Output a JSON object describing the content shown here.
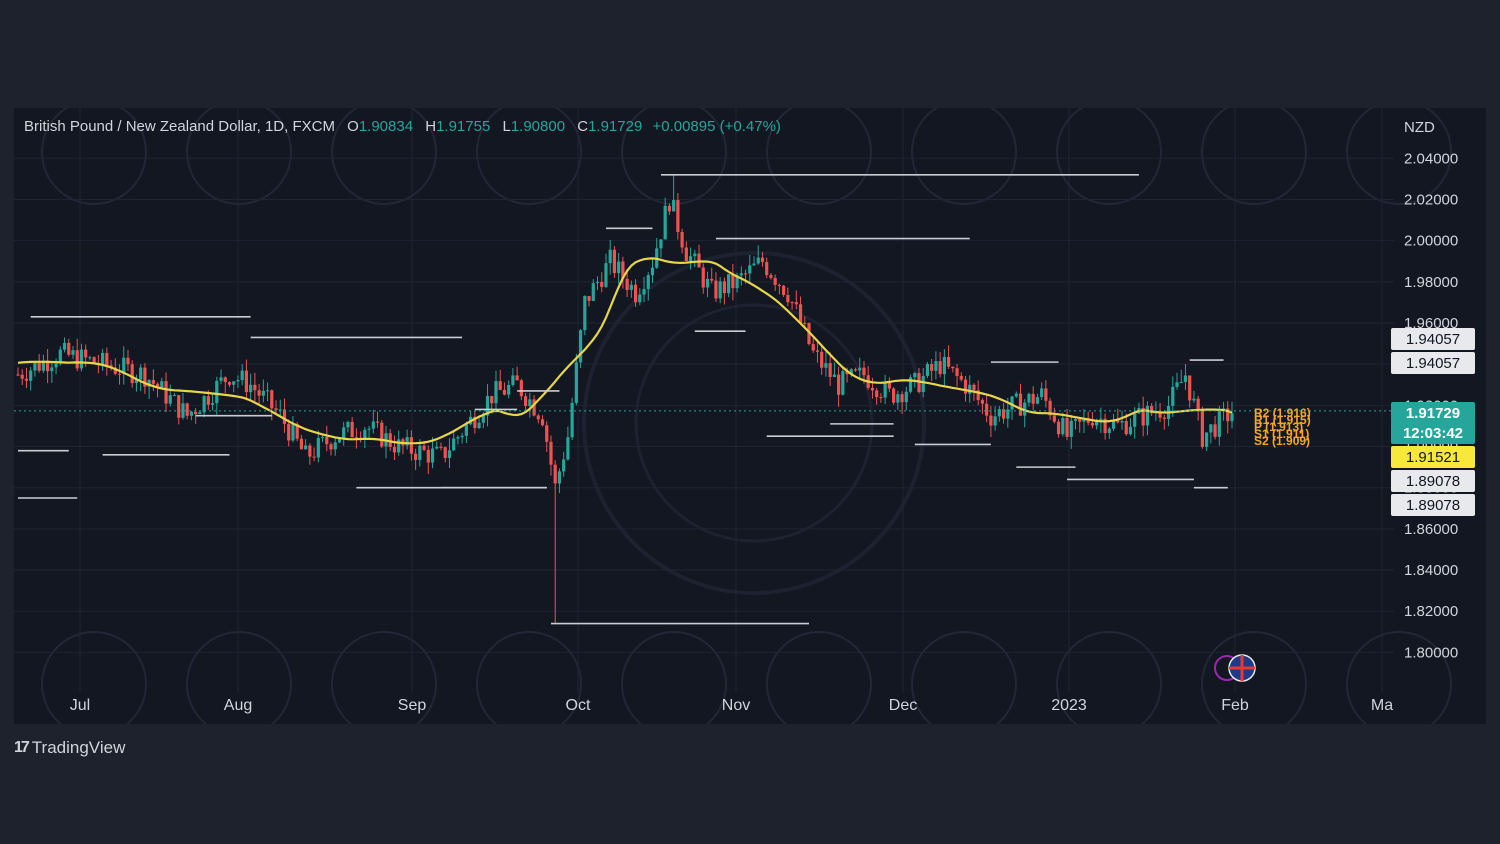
{
  "legend": {
    "symbol": "British Pound / New Zealand Dollar, 1D, FXCM",
    "o_label": "O",
    "o": "1.90834",
    "h_label": "H",
    "h": "1.91755",
    "l_label": "L",
    "l": "1.90800",
    "c_label": "C",
    "c": "1.91729",
    "change": "+0.00895 (+0.47%)"
  },
  "brand": "TradingView",
  "colors": {
    "up": "#26a69a",
    "down": "#ef5350",
    "ma": "#e7d64a",
    "level": "#c9ccd3",
    "pivot": "#f5a623",
    "grid": "#1f2433",
    "text": "#d1d4dc"
  },
  "icons": [
    "tradingview-logo-icon",
    "event-flag-icon",
    "uk-flag-icon"
  ],
  "chart_data": {
    "type": "candlestick",
    "currency": "NZD",
    "ylim": [
      1.79,
      2.045
    ],
    "yticks": [
      "2.04000",
      "2.02000",
      "2.00000",
      "1.98000",
      "1.96000",
      "1.94000",
      "1.92000",
      "1.90000",
      "1.88000",
      "1.86000",
      "1.84000",
      "1.82000",
      "1.80000"
    ],
    "xticks": [
      "Jul",
      "Aug",
      "Sep",
      "Oct",
      "Nov",
      "Dec",
      "2023",
      "Feb",
      "Ma"
    ],
    "price_tags": [
      {
        "text": "1.94057",
        "value": 1.94057,
        "style": "light"
      },
      {
        "text": "1.94057",
        "value": 1.94057,
        "style": "light"
      },
      {
        "text": "1.91729",
        "value": 1.91729,
        "style": "green"
      },
      {
        "text": "12:03:42",
        "value": 1.91729,
        "style": "green"
      },
      {
        "text": "1.91521",
        "value": 1.91521,
        "style": "yellow"
      },
      {
        "text": "1.89078",
        "value": 1.89078,
        "style": "light"
      },
      {
        "text": "1.89078",
        "value": 1.89078,
        "style": "light"
      }
    ],
    "pivots": [
      "R2 (1.916)",
      "R1 (1.915)",
      "P (1.913)",
      "S1 (1.911)",
      "S2 (1.909)"
    ],
    "level_segments": [
      {
        "from": 0,
        "to": 12,
        "y": 1.898
      },
      {
        "from": 0,
        "to": 14,
        "y": 1.875
      },
      {
        "from": 3,
        "to": 55,
        "y": 1.963
      },
      {
        "from": 20,
        "to": 50,
        "y": 1.896
      },
      {
        "from": 55,
        "to": 105,
        "y": 1.953
      },
      {
        "from": 42,
        "to": 60,
        "y": 1.915
      },
      {
        "from": 80,
        "to": 125,
        "y": 1.88
      },
      {
        "from": 100,
        "to": 125,
        "y": 1.88
      },
      {
        "from": 108,
        "to": 118,
        "y": 1.918
      },
      {
        "from": 118,
        "to": 128,
        "y": 1.927
      },
      {
        "from": 126,
        "to": 187,
        "y": 1.814
      },
      {
        "from": 139,
        "to": 150,
        "y": 2.006
      },
      {
        "from": 152,
        "to": 265,
        "y": 2.032
      },
      {
        "from": 165,
        "to": 225,
        "y": 2.001
      },
      {
        "from": 160,
        "to": 172,
        "y": 1.956
      },
      {
        "from": 177,
        "to": 207,
        "y": 1.905
      },
      {
        "from": 192,
        "to": 207,
        "y": 1.911
      },
      {
        "from": 212,
        "to": 230,
        "y": 1.901
      },
      {
        "from": 230,
        "to": 246,
        "y": 1.941
      },
      {
        "from": 236,
        "to": 250,
        "y": 1.89
      },
      {
        "from": 248,
        "to": 278,
        "y": 1.884
      },
      {
        "from": 277,
        "to": 285,
        "y": 1.942
      },
      {
        "from": 278,
        "to": 286,
        "y": 1.88
      }
    ],
    "candles_ohlc": []
  }
}
